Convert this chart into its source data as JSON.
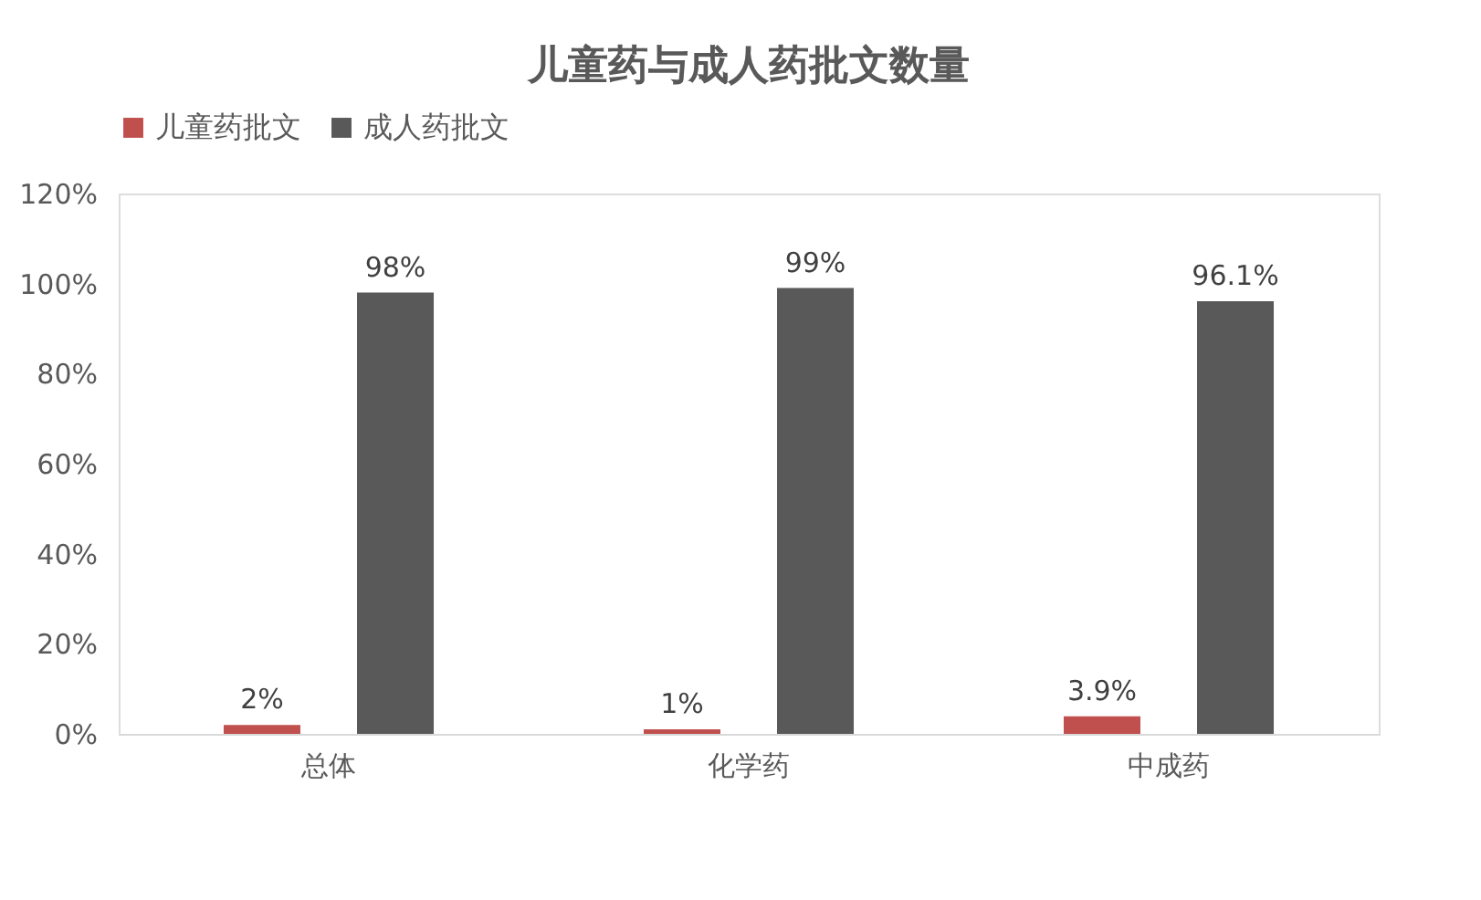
{
  "chart_data": {
    "type": "bar",
    "title": "儿童药与成人药批文数量",
    "categories": [
      "总体",
      "化学药",
      "中成药"
    ],
    "series": [
      {
        "name": "儿童药批文",
        "color": "#c0504d",
        "values": [
          2,
          1,
          3.9
        ],
        "value_labels": [
          "2%",
          "1%",
          "3.9%"
        ]
      },
      {
        "name": "成人药批文",
        "color": "#595959",
        "values": [
          98,
          99,
          96.1
        ],
        "value_labels": [
          "98%",
          "99%",
          "96.1%"
        ]
      }
    ],
    "ylim": [
      0,
      120
    ],
    "yticks": [
      {
        "value": 0,
        "label": "0%"
      },
      {
        "value": 20,
        "label": "20%"
      },
      {
        "value": 40,
        "label": "40%"
      },
      {
        "value": 60,
        "label": "60%"
      },
      {
        "value": 80,
        "label": "80%"
      },
      {
        "value": 100,
        "label": "100%"
      },
      {
        "value": 120,
        "label": "120%"
      }
    ],
    "grid": false,
    "legend": "top"
  }
}
